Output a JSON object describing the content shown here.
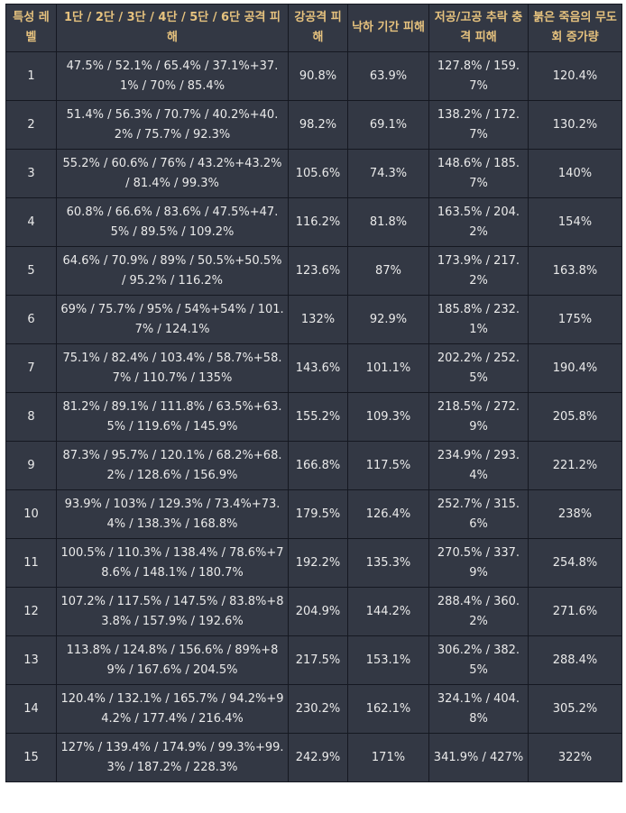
{
  "headers": [
    "특성 레벨",
    "1단 / 2단 / 3단 / 4단 / 5단 / 6단 공격 피해",
    "강공격 피해",
    "낙하 기간 피해",
    "저공/고공 추락 충격 피해",
    "붉은 죽음의 무도회 증가량"
  ],
  "rows": [
    [
      "1",
      "47.5% / 52.1% / 65.4% / 37.1%+37.1% / 70% / 85.4%",
      "90.8%",
      "63.9%",
      "127.8% / 159.7%",
      "120.4%"
    ],
    [
      "2",
      "51.4% / 56.3% / 70.7% / 40.2%+40.2% / 75.7% / 92.3%",
      "98.2%",
      "69.1%",
      "138.2% / 172.7%",
      "130.2%"
    ],
    [
      "3",
      "55.2% / 60.6% / 76% / 43.2%+43.2% / 81.4% / 99.3%",
      "105.6%",
      "74.3%",
      "148.6% / 185.7%",
      "140%"
    ],
    [
      "4",
      "60.8% / 66.6% / 83.6% / 47.5%+47.5% / 89.5% / 109.2%",
      "116.2%",
      "81.8%",
      "163.5% / 204.2%",
      "154%"
    ],
    [
      "5",
      "64.6% / 70.9% / 89% / 50.5%+50.5% / 95.2% / 116.2%",
      "123.6%",
      "87%",
      "173.9% / 217.2%",
      "163.8%"
    ],
    [
      "6",
      "69% / 75.7% / 95% / 54%+54% / 101.7% / 124.1%",
      "132%",
      "92.9%",
      "185.8% / 232.1%",
      "175%"
    ],
    [
      "7",
      "75.1% / 82.4% / 103.4% / 58.7%+58.7% / 110.7% / 135%",
      "143.6%",
      "101.1%",
      "202.2% / 252.5%",
      "190.4%"
    ],
    [
      "8",
      "81.2% / 89.1% / 111.8% / 63.5%+63.5% / 119.6% / 145.9%",
      "155.2%",
      "109.3%",
      "218.5% / 272.9%",
      "205.8%"
    ],
    [
      "9",
      "87.3% / 95.7% / 120.1% / 68.2%+68.2% / 128.6% / 156.9%",
      "166.8%",
      "117.5%",
      "234.9% / 293.4%",
      "221.2%"
    ],
    [
      "10",
      "93.9% / 103% / 129.3% / 73.4%+73.4% / 138.3% / 168.8%",
      "179.5%",
      "126.4%",
      "252.7% / 315.6%",
      "238%"
    ],
    [
      "11",
      "100.5% / 110.3% / 138.4% / 78.6%+78.6% / 148.1% / 180.7%",
      "192.2%",
      "135.3%",
      "270.5% / 337.9%",
      "254.8%"
    ],
    [
      "12",
      "107.2% / 117.5% / 147.5% / 83.8%+83.8% / 157.9% / 192.6%",
      "204.9%",
      "144.2%",
      "288.4% / 360.2%",
      "271.6%"
    ],
    [
      "13",
      "113.8% / 124.8% / 156.6% / 89%+89% / 167.6% / 204.5%",
      "217.5%",
      "153.1%",
      "306.2% / 382.5%",
      "288.4%"
    ],
    [
      "14",
      "120.4% / 132.1% / 165.7% / 94.2%+94.2% / 177.4% / 216.4%",
      "230.2%",
      "162.1%",
      "324.1% / 404.8%",
      "305.2%"
    ],
    [
      "15",
      "127% / 139.4% / 174.9% / 99.3%+99.3% / 187.2% / 228.3%",
      "242.9%",
      "171%",
      "341.9% / 427%",
      "322%"
    ]
  ]
}
